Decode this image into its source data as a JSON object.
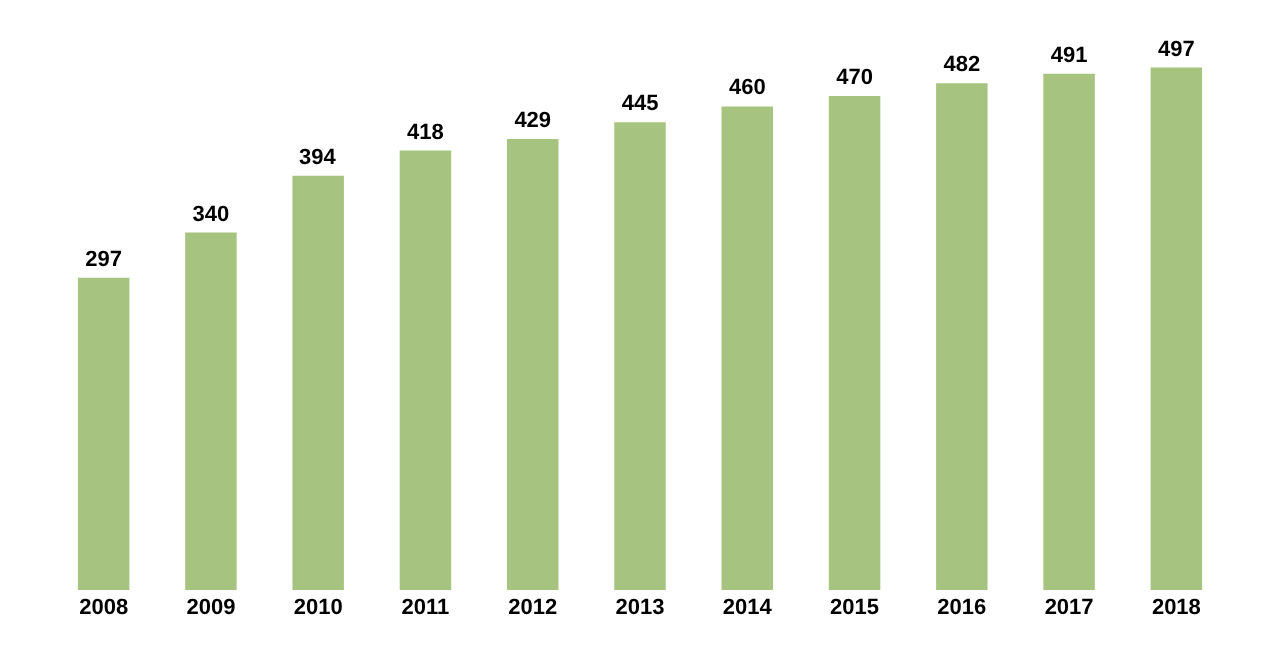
{
  "chart_data": {
    "type": "bar",
    "categories": [
      "2008",
      "2009",
      "2010",
      "2011",
      "2012",
      "2013",
      "2014",
      "2015",
      "2016",
      "2017",
      "2018"
    ],
    "values": [
      297,
      340,
      394,
      418,
      429,
      445,
      460,
      470,
      482,
      491,
      497
    ],
    "color": "#a6c47f",
    "data_labels": true
  }
}
